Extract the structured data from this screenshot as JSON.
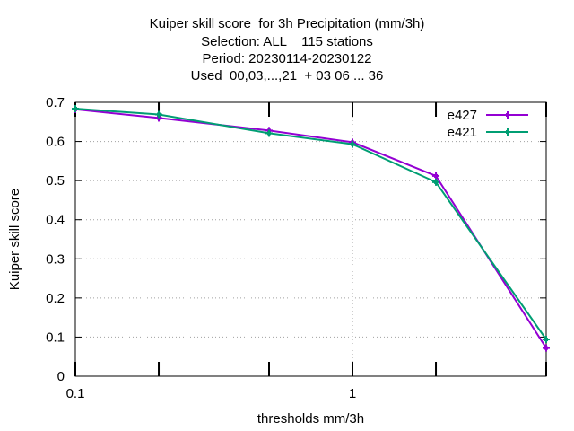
{
  "chart_data": {
    "type": "line",
    "title_lines": [
      "Kuiper skill score  for 3h Precipitation (mm/3h)",
      "Selection: ALL    115 stations",
      "Period: 20230114-20230122",
      "Used  00,03,...,21  + 03 06 ... 36"
    ],
    "xlabel": "thresholds mm/3h",
    "ylabel": "Kuiper skill score",
    "xscale": "log",
    "xlim": [
      0.1,
      5
    ],
    "ylim": [
      0,
      0.7
    ],
    "yticks": [
      "0",
      "0.1",
      "0.2",
      "0.3",
      "0.4",
      "0.5",
      "0.6",
      "0.7"
    ],
    "xticks": [
      "0.1",
      "1"
    ],
    "x": [
      0.1,
      0.2,
      0.5,
      1,
      2,
      5
    ],
    "series": [
      {
        "name": "e427",
        "color": "#9400d3",
        "values": [
          0.682,
          0.66,
          0.628,
          0.598,
          0.512,
          0.072
        ]
      },
      {
        "name": "e421",
        "color": "#009e73",
        "values": [
          0.684,
          0.669,
          0.621,
          0.593,
          0.496,
          0.094
        ]
      }
    ],
    "grid": true,
    "legend_position": "top-right"
  }
}
